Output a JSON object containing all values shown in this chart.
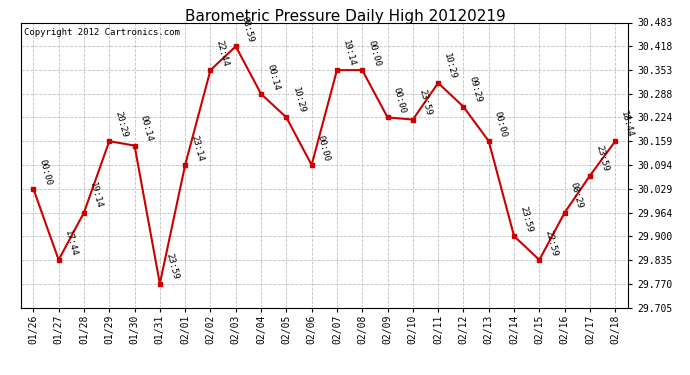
{
  "title": "Barometric Pressure Daily High 20120219",
  "copyright": "Copyright 2012 Cartronics.com",
  "x_labels": [
    "01/26",
    "01/27",
    "01/28",
    "01/29",
    "01/30",
    "01/31",
    "02/01",
    "02/02",
    "02/03",
    "02/04",
    "02/05",
    "02/06",
    "02/07",
    "02/08",
    "02/09",
    "02/10",
    "02/11",
    "02/12",
    "02/13",
    "02/14",
    "02/15",
    "02/16",
    "02/17",
    "02/18"
  ],
  "y_values": [
    30.029,
    29.835,
    29.964,
    30.159,
    30.147,
    29.77,
    30.094,
    30.353,
    30.418,
    30.288,
    30.224,
    30.094,
    30.353,
    30.353,
    30.224,
    30.218,
    30.318,
    30.253,
    30.159,
    29.9,
    29.835,
    29.964,
    30.065,
    30.159
  ],
  "time_labels": [
    "00:00",
    "17:44",
    "19:14",
    "20:29",
    "00:14",
    "23:59",
    "23:14",
    "22:44",
    "08:59",
    "00:14",
    "10:29",
    "00:00",
    "19:14",
    "00:00",
    "00:00",
    "23:59",
    "10:29",
    "09:29",
    "00:00",
    "23:59",
    "22:59",
    "08:29",
    "23:59",
    "18:44"
  ],
  "y_min": 29.705,
  "y_max": 30.483,
  "y_ticks": [
    29.705,
    29.77,
    29.835,
    29.9,
    29.964,
    30.029,
    30.094,
    30.159,
    30.224,
    30.288,
    30.353,
    30.418,
    30.483
  ],
  "line_color": "#cc0000",
  "marker_color": "#cc0000",
  "bg_color": "#ffffff",
  "plot_bg_color": "#ffffff",
  "grid_color": "#c0c0c0",
  "title_fontsize": 11,
  "copyright_fontsize": 6.5,
  "tick_fontsize": 7,
  "label_fontsize": 6.5
}
